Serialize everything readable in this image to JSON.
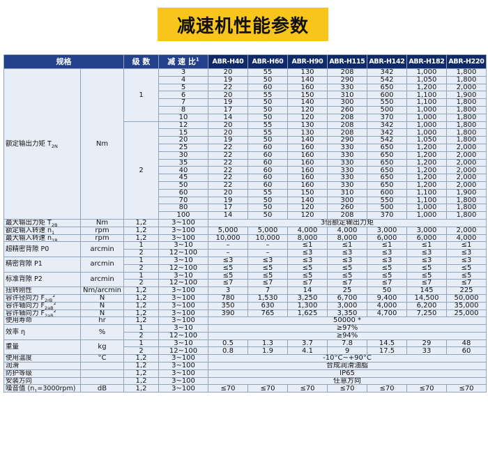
{
  "title": "减速机性能参数",
  "header": {
    "spec": "规格",
    "stage": "级 数",
    "ratio": "减 速 比",
    "ratio_sup": "1",
    "models": [
      "ABR-H40",
      "ABR-H60",
      "ABR-H90",
      "ABR-H115",
      "ABR-H142",
      "ABR-H182",
      "ABR-H220"
    ]
  },
  "rated_torque": {
    "label": "额定输出力矩 T",
    "label_sub": "2N",
    "unit": "Nm",
    "stage1": "1",
    "stage2": "2",
    "rows": [
      {
        "ratio": "3",
        "v": [
          "20",
          "55",
          "130",
          "208",
          "342",
          "1,000",
          "1,800"
        ]
      },
      {
        "ratio": "4",
        "v": [
          "19",
          "50",
          "140",
          "290",
          "542",
          "1,050",
          "1,800"
        ]
      },
      {
        "ratio": "5",
        "v": [
          "22",
          "60",
          "160",
          "330",
          "650",
          "1,200",
          "2,000"
        ]
      },
      {
        "ratio": "6",
        "v": [
          "20",
          "55",
          "150",
          "310",
          "600",
          "1,100",
          "1,900"
        ]
      },
      {
        "ratio": "7",
        "v": [
          "19",
          "50",
          "140",
          "300",
          "550",
          "1,100",
          "1,800"
        ]
      },
      {
        "ratio": "8",
        "v": [
          "17",
          "50",
          "120",
          "260",
          "500",
          "1,000",
          "1,800"
        ]
      },
      {
        "ratio": "10",
        "v": [
          "14",
          "50",
          "120",
          "208",
          "370",
          "1,000",
          "1,800"
        ]
      },
      {
        "ratio": "12",
        "v": [
          "20",
          "55",
          "130",
          "208",
          "342",
          "1,000",
          "1,800"
        ]
      },
      {
        "ratio": "15",
        "v": [
          "20",
          "55",
          "130",
          "208",
          "342",
          "1,000",
          "1,800"
        ]
      },
      {
        "ratio": "20",
        "v": [
          "19",
          "50",
          "140",
          "290",
          "542",
          "1,050",
          "1,800"
        ]
      },
      {
        "ratio": "25",
        "v": [
          "22",
          "60",
          "160",
          "330",
          "650",
          "1,200",
          "2,000"
        ]
      },
      {
        "ratio": "30",
        "v": [
          "22",
          "60",
          "160",
          "330",
          "650",
          "1,200",
          "2,000"
        ]
      },
      {
        "ratio": "35",
        "v": [
          "22",
          "60",
          "160",
          "330",
          "650",
          "1,200",
          "2,000"
        ]
      },
      {
        "ratio": "40",
        "v": [
          "22",
          "60",
          "160",
          "330",
          "650",
          "1,200",
          "2,000"
        ]
      },
      {
        "ratio": "45",
        "v": [
          "22",
          "60",
          "160",
          "330",
          "650",
          "1,200",
          "2,000"
        ]
      },
      {
        "ratio": "50",
        "v": [
          "22",
          "60",
          "160",
          "330",
          "650",
          "1,200",
          "2,000"
        ]
      },
      {
        "ratio": "60",
        "v": [
          "20",
          "55",
          "150",
          "310",
          "600",
          "1,100",
          "1,900"
        ]
      },
      {
        "ratio": "70",
        "v": [
          "19",
          "50",
          "140",
          "300",
          "550",
          "1,100",
          "1,800"
        ]
      },
      {
        "ratio": "80",
        "v": [
          "17",
          "50",
          "120",
          "260",
          "500",
          "1,000",
          "1,800"
        ]
      },
      {
        "ratio": "100",
        "v": [
          "14",
          "50",
          "120",
          "208",
          "370",
          "1,000",
          "1,800"
        ]
      }
    ]
  },
  "max_torque": {
    "label": "最大输出力矩 T",
    "sub": "2B",
    "unit": "Nm",
    "stage": "1,2",
    "ratio": "3~100",
    "value": "3倍额定输出力矩"
  },
  "rated_speed": {
    "label": "额定输入转速 n",
    "sub": "1",
    "unit": "rpm",
    "stage": "1,2",
    "ratio": "3~100",
    "v": [
      "5,000",
      "5,000",
      "4,000",
      "4,000",
      "3,000",
      "3,000",
      "2,000"
    ]
  },
  "max_speed": {
    "label": "最大输入转速 n",
    "sub": "1B",
    "unit": "rpm",
    "stage": "1,2",
    "ratio": "3~100",
    "v": [
      "10,000",
      "10,000",
      "8,000",
      "8,000",
      "6,000",
      "6,000",
      "4,000"
    ]
  },
  "backlash": [
    {
      "label": "超精密背隙 P0",
      "unit": "arcmin",
      "rows": [
        {
          "stage": "1",
          "ratio": "3~10",
          "v": [
            "–",
            "–",
            "≤1",
            "≤1",
            "≤1",
            "≤1",
            "≤1"
          ]
        },
        {
          "stage": "2",
          "ratio": "12~100",
          "v": [
            "–",
            "–",
            "≤3",
            "≤3",
            "≤3",
            "≤3",
            "≤3"
          ]
        }
      ]
    },
    {
      "label": "精密背隙 P1",
      "unit": "arcmin",
      "rows": [
        {
          "stage": "1",
          "ratio": "3~10",
          "v": [
            "≤3",
            "≤3",
            "≤3",
            "≤3",
            "≤3",
            "≤3",
            "≤3"
          ]
        },
        {
          "stage": "2",
          "ratio": "12~100",
          "v": [
            "≤5",
            "≤5",
            "≤5",
            "≤5",
            "≤5",
            "≤5",
            "≤5"
          ]
        }
      ]
    },
    {
      "label": "标准背隙 P2",
      "unit": "arcmin",
      "rows": [
        {
          "stage": "1",
          "ratio": "3~10",
          "v": [
            "≤5",
            "≤5",
            "≤5",
            "≤5",
            "≤5",
            "≤5",
            "≤5"
          ]
        },
        {
          "stage": "2",
          "ratio": "12~100",
          "v": [
            "≤7",
            "≤7",
            "≤7",
            "≤7",
            "≤7",
            "≤7",
            "≤7"
          ]
        }
      ]
    }
  ],
  "stiffness": {
    "label": "扭转刚性",
    "unit": "Nm/arcmin",
    "stage": "1,2",
    "ratio": "3~100",
    "v": [
      "3",
      "7",
      "14",
      "25",
      "50",
      "145",
      "225"
    ]
  },
  "radial_force": {
    "label": "容许径向力 F",
    "sub": "2rB",
    "sup": "2",
    "unit": "N",
    "stage": "1,2",
    "ratio": "3~100",
    "v": [
      "780",
      "1,530",
      "3,250",
      "6,700",
      "9,400",
      "14,500",
      "50,000"
    ]
  },
  "axial_force": {
    "label": "容许轴向力 F",
    "sub": "2aB",
    "sup": "2",
    "unit": "N",
    "stage": "1,2",
    "ratio": "3~100",
    "v": [
      "350",
      "630",
      "1,300",
      "3,000",
      "4,000",
      "6,200",
      "35,000"
    ]
  },
  "axial_force2": {
    "label": "容许轴向力 F",
    "sub": "2aB",
    "sup": "2",
    "unit": "N",
    "stage": "1,2",
    "ratio": "3~100",
    "v": [
      "390",
      "765",
      "1,625",
      "3,350",
      "4,700",
      "7,250",
      "25,000"
    ]
  },
  "life": {
    "label": "使用寿命",
    "unit": "hr",
    "stage": "1,2",
    "ratio": "3~100",
    "value": "50000 *"
  },
  "efficiency": {
    "label": "效率 η",
    "unit": "%",
    "rows": [
      {
        "stage": "1",
        "ratio": "3~10",
        "value": "≥97%"
      },
      {
        "stage": "2",
        "ratio": "12~100",
        "value": "≥94%"
      }
    ]
  },
  "weight": {
    "label": "重量",
    "unit": "kg",
    "rows": [
      {
        "stage": "1",
        "ratio": "3~10",
        "v": [
          "0.5",
          "1.3",
          "3.7",
          "7.8",
          "14.5",
          "29",
          "48"
        ]
      },
      {
        "stage": "2",
        "ratio": "12~100",
        "v": [
          "0.8",
          "1.9",
          "4.1",
          "9",
          "17.5",
          "33",
          "60"
        ]
      }
    ]
  },
  "temperature": {
    "label": "使用温度",
    "unit": "°C",
    "stage": "1,2",
    "ratio": "3~100",
    "value": "-10°C~+90°C"
  },
  "lubrication": {
    "label": "润滑",
    "unit": "",
    "stage": "1,2",
    "ratio": "3~100",
    "value": "合成润滑油脂"
  },
  "protection": {
    "label": "防护等级",
    "unit": "",
    "stage": "1,2",
    "ratio": "3~100",
    "value": "IP65"
  },
  "mounting": {
    "label": "安装方向",
    "unit": "",
    "stage": "1,2",
    "ratio": "3~100",
    "value": "任意方向"
  },
  "noise": {
    "label": "噪音值 (n",
    "sub": "1",
    "label_end": "=3000rpm)",
    "unit": "dB",
    "stage": "1,2",
    "ratio": "3~100",
    "v": [
      "≤70",
      "≤70",
      "≤70",
      "≤70",
      "≤70",
      "≤70",
      "≤70"
    ]
  }
}
